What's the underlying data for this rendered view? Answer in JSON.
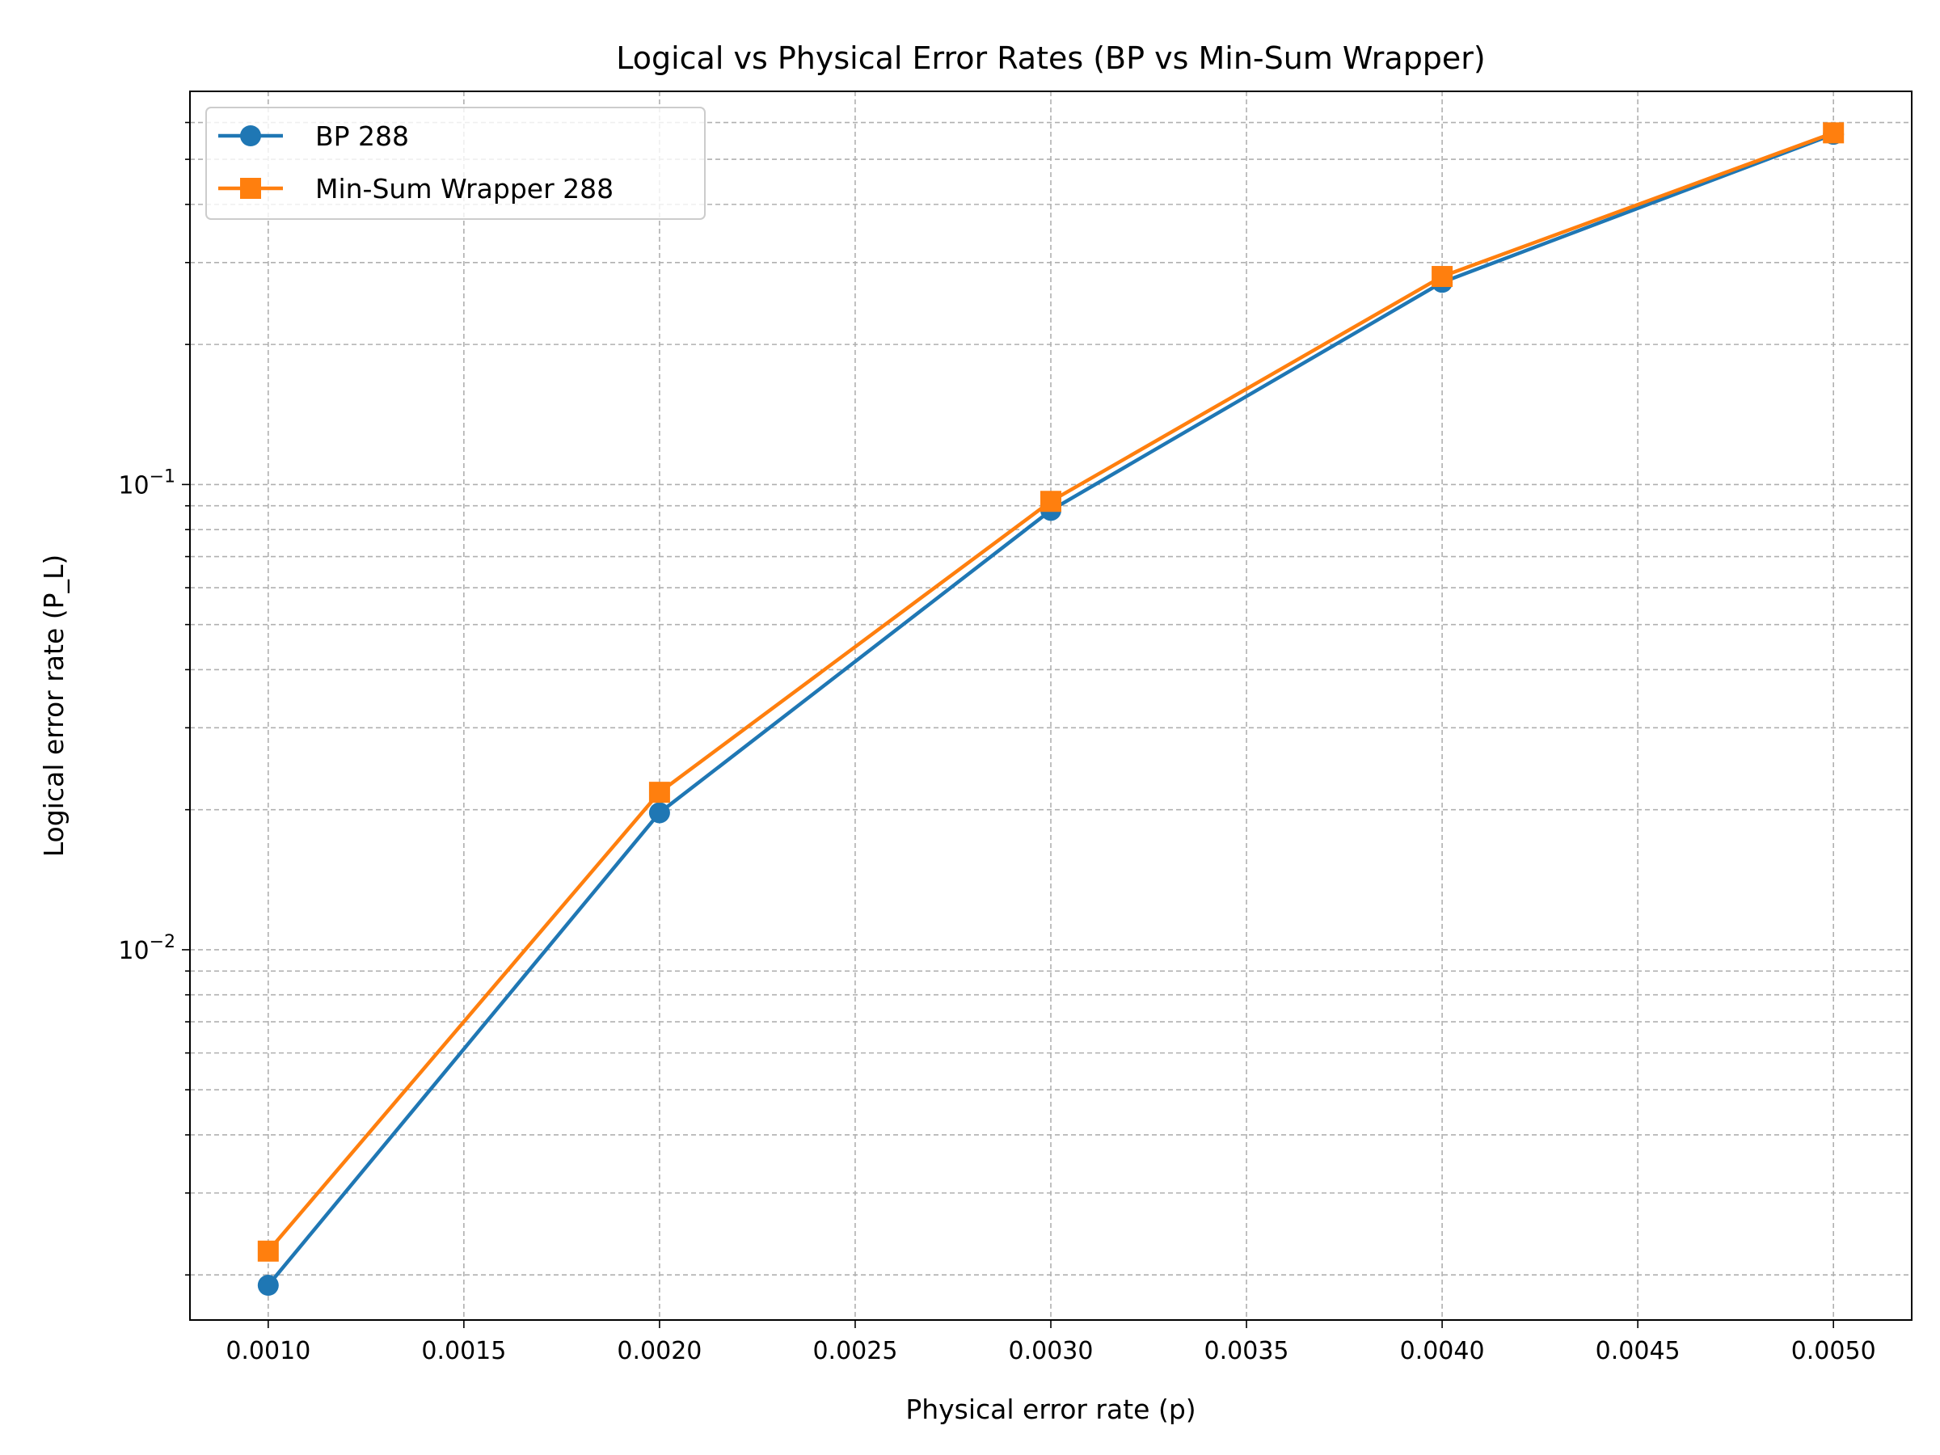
{
  "chart_data": {
    "type": "line",
    "title": "Logical vs Physical Error Rates (BP vs Min-Sum Wrapper)",
    "xlabel": "Physical error rate (p)",
    "ylabel": "Logical error rate (P_L)",
    "yscale": "log",
    "xlim": [
      0.0008,
      0.0052
    ],
    "ylim": [
      0.0016,
      0.7
    ],
    "x_ticks": [
      "0.0010",
      "0.0015",
      "0.0020",
      "0.0025",
      "0.0030",
      "0.0035",
      "0.0040",
      "0.0045",
      "0.0050"
    ],
    "y_ticks": [
      {
        "base": "10",
        "exp": "−2",
        "value": 0.01
      },
      {
        "base": "10",
        "exp": "−1",
        "value": 0.1
      }
    ],
    "grid": true,
    "legend_position": "top-left",
    "series": [
      {
        "name": "BP 288",
        "marker": "circle",
        "color": "#1f77b4",
        "x": [
          0.001,
          0.002,
          0.003,
          0.004,
          0.005
        ],
        "y": [
          0.0019,
          0.0197,
          0.088,
          0.272,
          0.566
        ]
      },
      {
        "name": "Min-Sum Wrapper 288",
        "marker": "square",
        "color": "#ff7f0e",
        "x": [
          0.001,
          0.002,
          0.003,
          0.004,
          0.005
        ],
        "y": [
          0.00225,
          0.0218,
          0.092,
          0.28,
          0.57
        ]
      }
    ]
  }
}
